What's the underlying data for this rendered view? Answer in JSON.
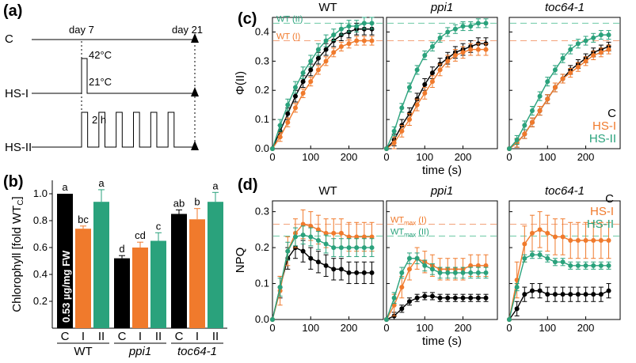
{
  "colors": {
    "C": "#000000",
    "HS_I": "#f07a2c",
    "HS_II": "#2aa27c",
    "ref_I": "#f3a27a",
    "ref_II": "#6ccaa5"
  },
  "panel_labels": {
    "a": "(a)",
    "b": "(b)",
    "c": "(c)",
    "d": "(d)"
  },
  "panel_a": {
    "treatments": [
      "C",
      "HS-I",
      "HS-II"
    ],
    "day_start": "day 7",
    "day_end": "day 21",
    "hot": "42°C",
    "normal": "21°C",
    "duration": "2 h",
    "hs2_pulses": 6
  },
  "chart_data": [
    {
      "id": "b",
      "type": "bar",
      "ylabel": "Chlorophyll [fold WT",
      "ylabel_sub": "C",
      "ylabel_end": "]",
      "yticks": [
        0.2,
        0.4,
        0.6,
        0.8,
        1.0
      ],
      "ytick_labels": [
        "0.2",
        "0.4",
        "0.6",
        "0.8",
        "1.0"
      ],
      "ylim": [
        0,
        1.1
      ],
      "inner_label": "0.53 µg/mg FW",
      "treatment_labels": [
        "C",
        "I",
        "II"
      ],
      "groups": [
        {
          "name": "WT",
          "values": [
            1.0,
            0.74,
            0.94
          ],
          "errors": [
            0,
            0.02,
            0.09
          ],
          "letters": [
            "a",
            "bc",
            "a"
          ]
        },
        {
          "name": "ppi1",
          "values": [
            0.52,
            0.6,
            0.65
          ],
          "errors": [
            0.02,
            0.04,
            0.06
          ],
          "letters": [
            "d",
            "cd",
            "c"
          ]
        },
        {
          "name": "toc64-1",
          "values": [
            0.85,
            0.81,
            0.94
          ],
          "errors": [
            0.03,
            0.08,
            0.07
          ],
          "letters": [
            "ab",
            "b",
            "a"
          ]
        }
      ]
    },
    {
      "id": "c",
      "type": "line",
      "ylabel": "Φ(II)",
      "xlabel": "time (s)",
      "xlim": [
        0,
        290
      ],
      "ylim": [
        0,
        0.45
      ],
      "xticks": [
        0,
        100,
        200
      ],
      "yticks": [
        0,
        0.1,
        0.2,
        0.3,
        0.4
      ],
      "ytick_labels": [
        "0.0",
        "0.1",
        "0.2",
        "0.3",
        "0.4"
      ],
      "x": [
        0,
        20,
        40,
        60,
        80,
        100,
        120,
        140,
        160,
        180,
        200,
        220,
        240,
        260
      ],
      "refs": [
        {
          "series": "HS_II",
          "label": "WT (II)",
          "value": 0.43
        },
        {
          "series": "HS_I",
          "label": "WT (I)",
          "value": 0.37
        }
      ],
      "legend": {
        "C": "C",
        "HS_I": "HS-I",
        "HS_II": "HS-II"
      },
      "subplots": [
        {
          "title": "WT",
          "italic": false,
          "C": {
            "values": [
              0,
              0.06,
              0.12,
              0.18,
              0.23,
              0.27,
              0.31,
              0.34,
              0.37,
              0.39,
              0.4,
              0.41,
              0.41,
              0.41
            ],
            "err": 0.02
          },
          "HS_I": {
            "values": [
              0,
              0.04,
              0.09,
              0.14,
              0.19,
              0.23,
              0.27,
              0.3,
              0.33,
              0.35,
              0.36,
              0.37,
              0.37,
              0.37
            ],
            "err": 0.015
          },
          "HS_II": {
            "values": [
              0,
              0.08,
              0.15,
              0.21,
              0.26,
              0.3,
              0.34,
              0.37,
              0.39,
              0.41,
              0.42,
              0.42,
              0.43,
              0.43
            ],
            "err": 0.02
          }
        },
        {
          "title": "ppi1",
          "italic": true,
          "C": {
            "values": [
              0,
              0.03,
              0.08,
              0.12,
              0.17,
              0.22,
              0.26,
              0.29,
              0.31,
              0.33,
              0.34,
              0.35,
              0.36,
              0.36
            ],
            "err": 0.02
          },
          "HS_I": {
            "values": [
              0,
              0.02,
              0.06,
              0.1,
              0.15,
              0.19,
              0.23,
              0.27,
              0.3,
              0.32,
              0.33,
              0.34,
              0.34,
              0.34
            ],
            "err": 0.02
          },
          "HS_II": {
            "values": [
              0,
              0.06,
              0.14,
              0.21,
              0.27,
              0.32,
              0.35,
              0.38,
              0.4,
              0.41,
              0.42,
              0.42,
              0.43,
              0.43
            ],
            "err": 0.015
          }
        },
        {
          "title": "toc64-1",
          "italic": true,
          "C": {
            "values": [
              0,
              0.02,
              0.05,
              0.09,
              0.13,
              0.17,
              0.21,
              0.24,
              0.27,
              0.29,
              0.31,
              0.33,
              0.34,
              0.35
            ],
            "err": 0.015
          },
          "HS_I": {
            "values": [
              0,
              0.02,
              0.05,
              0.09,
              0.13,
              0.17,
              0.21,
              0.24,
              0.26,
              0.28,
              0.3,
              0.32,
              0.33,
              0.34
            ],
            "err": 0.015
          },
          "HS_II": {
            "values": [
              0,
              0.03,
              0.08,
              0.13,
              0.18,
              0.23,
              0.27,
              0.31,
              0.34,
              0.36,
              0.37,
              0.38,
              0.39,
              0.39
            ],
            "err": 0.015
          }
        }
      ]
    },
    {
      "id": "d",
      "type": "line",
      "ylabel": "NPQ",
      "xlabel": "time (s)",
      "xlim": [
        0,
        290
      ],
      "ylim": [
        0,
        0.33
      ],
      "xticks": [
        0,
        100,
        200
      ],
      "yticks": [
        0,
        0.1,
        0.2,
        0.3
      ],
      "ytick_labels": [
        "0.0",
        "0.1",
        "0.2",
        "0.3"
      ],
      "x": [
        0,
        20,
        40,
        60,
        80,
        100,
        120,
        140,
        160,
        180,
        200,
        220,
        240,
        260
      ],
      "refs": [
        {
          "series": "HS_I",
          "label": "WT",
          "label_sub": "max",
          "label_end": " (I)",
          "value": 0.265
        },
        {
          "series": "HS_II",
          "label": "WT",
          "label_sub": "max",
          "label_end": " (II)",
          "value": 0.232
        }
      ],
      "legend": {
        "C": "C",
        "HS_I": "HS-I",
        "HS_II": "HS-II"
      },
      "subplots": [
        {
          "title": "WT",
          "italic": false,
          "C": {
            "values": [
              0,
              0.09,
              0.17,
              0.2,
              0.19,
              0.17,
              0.16,
              0.15,
              0.14,
              0.14,
              0.13,
              0.13,
              0.13,
              0.13
            ],
            "err": 0.03
          },
          "HS_I": {
            "values": [
              0,
              0.08,
              0.19,
              0.24,
              0.265,
              0.26,
              0.25,
              0.24,
              0.24,
              0.24,
              0.23,
              0.23,
              0.23,
              0.23
            ],
            "err": 0.04
          },
          "HS_II": {
            "values": [
              0,
              0.09,
              0.19,
              0.23,
              0.235,
              0.23,
              0.22,
              0.21,
              0.2,
              0.2,
              0.2,
              0.2,
              0.2,
              0.2
            ],
            "err": 0.025
          }
        },
        {
          "title": "ppi1",
          "italic": true,
          "C": {
            "values": [
              0,
              0.01,
              0.03,
              0.05,
              0.06,
              0.065,
              0.065,
              0.06,
              0.06,
              0.06,
              0.06,
              0.06,
              0.06,
              0.06
            ],
            "err": 0.01
          },
          "HS_I": {
            "values": [
              0,
              0.04,
              0.09,
              0.14,
              0.17,
              0.16,
              0.15,
              0.14,
              0.14,
              0.14,
              0.14,
              0.15,
              0.15,
              0.15
            ],
            "err": 0.03
          },
          "HS_II": {
            "values": [
              0,
              0.06,
              0.13,
              0.17,
              0.17,
              0.15,
              0.14,
              0.13,
              0.13,
              0.13,
              0.13,
              0.13,
              0.13,
              0.13
            ],
            "err": 0.015
          }
        },
        {
          "title": "toc64-1",
          "italic": true,
          "C": {
            "values": [
              0,
              0.03,
              0.07,
              0.08,
              0.08,
              0.07,
              0.07,
              0.07,
              0.07,
              0.07,
              0.07,
              0.07,
              0.07,
              0.08
            ],
            "err": 0.02
          },
          "HS_I": {
            "values": [
              0,
              0.11,
              0.21,
              0.24,
              0.25,
              0.24,
              0.23,
              0.23,
              0.22,
              0.22,
              0.22,
              0.22,
              0.22,
              0.22
            ],
            "err": 0.05
          },
          "HS_II": {
            "values": [
              0,
              0.09,
              0.17,
              0.18,
              0.18,
              0.17,
              0.16,
              0.16,
              0.15,
              0.15,
              0.15,
              0.15,
              0.15,
              0.15
            ],
            "err": 0.01
          }
        }
      ]
    }
  ]
}
